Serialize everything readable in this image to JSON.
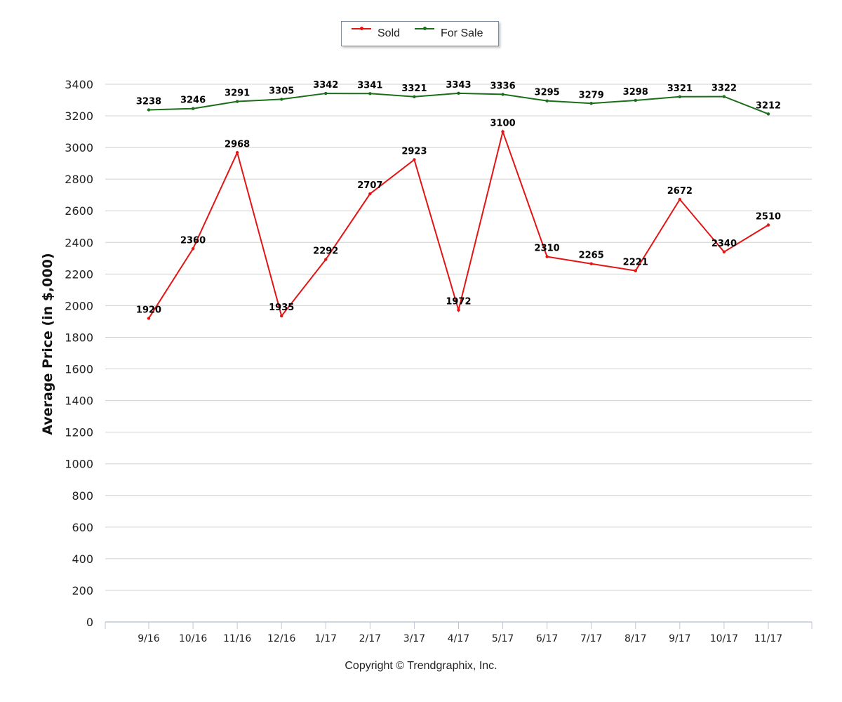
{
  "legend": {
    "sold_label": "Sold",
    "for_sale_label": "For Sale"
  },
  "footer": {
    "copyright": "Copyright © Trendgraphix, Inc."
  },
  "colors": {
    "sold": "#e31414",
    "for_sale": "#1a6e1a",
    "grid": "#d0d0d0"
  },
  "chart_data": {
    "type": "line",
    "title": "",
    "xlabel": "",
    "ylabel": "Average Price (in $,000)",
    "ylim": [
      0,
      3400
    ],
    "yticks": [
      0,
      200,
      400,
      600,
      800,
      1000,
      1200,
      1400,
      1600,
      1800,
      2000,
      2200,
      2400,
      2600,
      2800,
      3000,
      3200,
      3400
    ],
    "categories": [
      "9/16",
      "10/16",
      "11/16",
      "12/16",
      "1/17",
      "2/17",
      "3/17",
      "4/17",
      "5/17",
      "6/17",
      "7/17",
      "8/17",
      "9/17",
      "10/17",
      "11/17"
    ],
    "grid": true,
    "legend_position": "top-center",
    "series": [
      {
        "name": "Sold",
        "color": "#e31414",
        "values": [
          1920,
          2360,
          2968,
          1935,
          2292,
          2707,
          2923,
          1972,
          3100,
          2310,
          2265,
          2221,
          2672,
          2340,
          2510
        ]
      },
      {
        "name": "For Sale",
        "color": "#1a6e1a",
        "values": [
          3238,
          3246,
          3291,
          3305,
          3342,
          3341,
          3321,
          3343,
          3336,
          3295,
          3279,
          3298,
          3321,
          3322,
          3212
        ]
      }
    ]
  }
}
